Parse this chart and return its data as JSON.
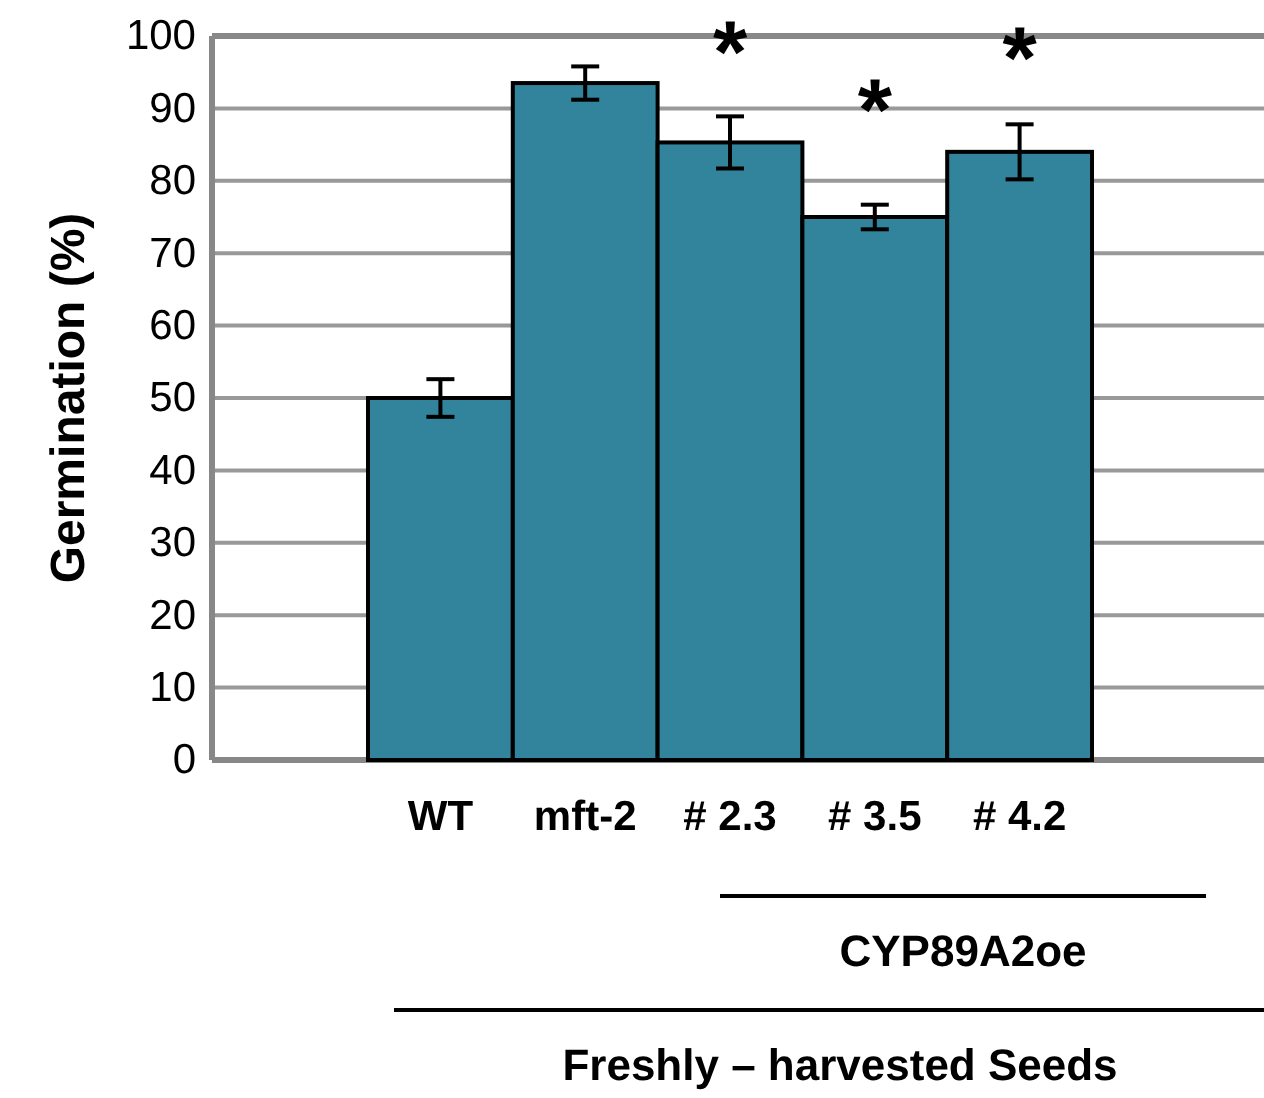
{
  "chart_data": {
    "type": "bar",
    "ylabel": "Germination (%)",
    "categories": [
      "WT",
      "mft-2",
      "# 2.3",
      "# 3.5",
      "# 4.2"
    ],
    "values": [
      50,
      93.5,
      85.3,
      75,
      84
    ],
    "errors": [
      2.6,
      2.3,
      3.6,
      1.7,
      3.8
    ],
    "color": "#31849b",
    "ylim": [
      0,
      100
    ],
    "yticks": [
      0,
      10,
      20,
      30,
      40,
      50,
      60,
      70,
      80,
      90,
      100
    ],
    "grid": "y",
    "annotations": [
      "*",
      "*",
      "*",
      "CYP89A2oe",
      "Freshly – harvested Seeds"
    ]
  }
}
